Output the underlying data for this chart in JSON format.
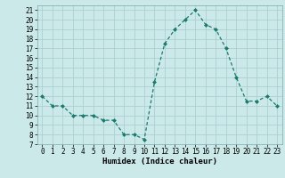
{
  "x": [
    0,
    1,
    2,
    3,
    4,
    5,
    6,
    7,
    8,
    9,
    10,
    11,
    12,
    13,
    14,
    15,
    16,
    17,
    18,
    19,
    20,
    21,
    22,
    23
  ],
  "y": [
    12,
    11,
    11,
    10,
    10,
    10,
    9.5,
    9.5,
    8,
    8,
    7.5,
    13.5,
    17.5,
    19,
    20,
    21,
    19.5,
    19,
    17,
    14,
    11.5,
    11.5,
    12,
    11
  ],
  "ylim": [
    7,
    21.5
  ],
  "xlim": [
    -0.5,
    23.5
  ],
  "yticks": [
    7,
    8,
    9,
    10,
    11,
    12,
    13,
    14,
    15,
    16,
    17,
    18,
    19,
    20,
    21
  ],
  "xticks": [
    0,
    1,
    2,
    3,
    4,
    5,
    6,
    7,
    8,
    9,
    10,
    11,
    12,
    13,
    14,
    15,
    16,
    17,
    18,
    19,
    20,
    21,
    22,
    23
  ],
  "xlabel": "Humidex (Indice chaleur)",
  "line_color": "#1a7a6e",
  "marker": "D",
  "marker_size": 2.0,
  "bg_color": "#cce9e9",
  "grid_color": "#aecfcf",
  "label_fontsize": 6.5,
  "tick_fontsize": 5.5
}
